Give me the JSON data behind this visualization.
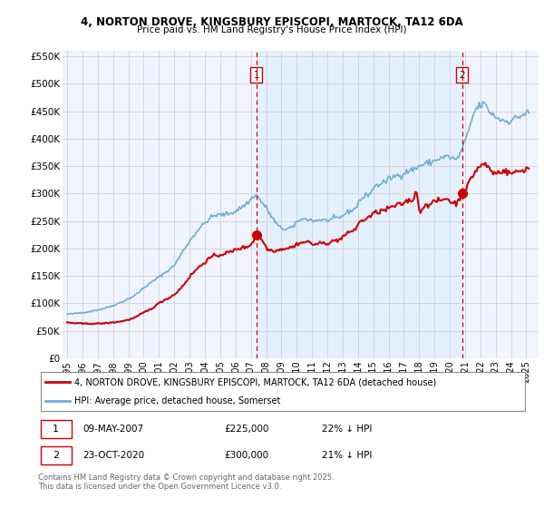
{
  "title_line1": "4, NORTON DROVE, KINGSBURY EPISCOPI, MARTOCK, TA12 6DA",
  "title_line2": "Price paid vs. HM Land Registry's House Price Index (HPI)",
  "ylim": [
    0,
    560000
  ],
  "yticks": [
    0,
    50000,
    100000,
    150000,
    200000,
    250000,
    300000,
    350000,
    400000,
    450000,
    500000,
    550000
  ],
  "ytick_labels": [
    "£0",
    "£50K",
    "£100K",
    "£150K",
    "£200K",
    "£250K",
    "£300K",
    "£350K",
    "£400K",
    "£450K",
    "£500K",
    "£550K"
  ],
  "xlim_start": 1994.7,
  "xlim_end": 2025.8,
  "marker1_x": 2007.36,
  "marker1_price": 225000,
  "marker2_x": 2020.81,
  "marker2_price": 300000,
  "legend_line1": "4, NORTON DROVE, KINGSBURY EPISCOPI, MARTOCK, TA12 6DA (detached house)",
  "legend_line2": "HPI: Average price, detached house, Somerset",
  "footer": "Contains HM Land Registry data © Crown copyright and database right 2025.\nThis data is licensed under the Open Government Licence v3.0.",
  "red_color": "#cc0000",
  "blue_color": "#6baed6",
  "blue_fill": "#ddeeff",
  "marker_color": "#cc0000",
  "plot_bg": "#f0f4ff",
  "grid_color": "#cccccc"
}
